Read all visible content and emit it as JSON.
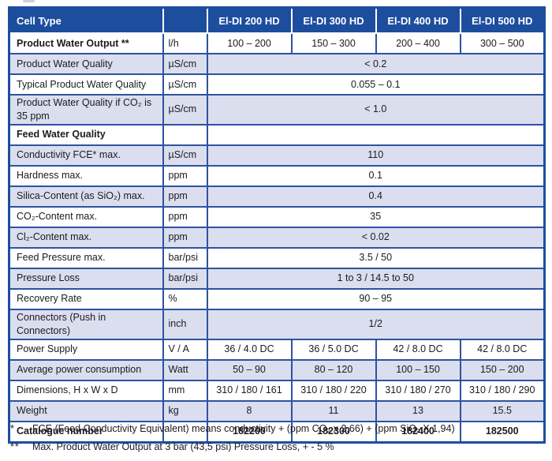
{
  "colors": {
    "header_bg": "#1d4e9e",
    "header_text": "#ffffff",
    "row_alt_bg": "#dbdeee",
    "border_blue": "#2e52a3",
    "text": "#1b1b22"
  },
  "table": {
    "header": {
      "label": "Cell Type",
      "unit": "",
      "columns": [
        "El-DI 200 HD",
        "El-DI 300 HD",
        "El-DI 400 HD",
        "El-DI 500 HD"
      ]
    },
    "rows": [
      {
        "label": "Product Water Output **",
        "unit": "l/h",
        "values": [
          "100 – 200",
          "150 – 300",
          "200 – 400",
          "300 – 500"
        ]
      },
      {
        "label": "Product Water Quality",
        "unit": "µS/cm",
        "value": "< 0.2"
      },
      {
        "label": "Typical Product Water Quality",
        "unit": "µS/cm",
        "value": "0.055 – 0.1"
      },
      {
        "label": "Product Water Quality if CO₂ is 35 ppm",
        "unit": "µS/cm",
        "value": "< 1.0"
      },
      {
        "label": "Feed Water Quality",
        "unit": "",
        "value": ""
      },
      {
        "label": "Conductivity FCE* max.",
        "unit": "µS/cm",
        "value": "110"
      },
      {
        "label": "Hardness max.",
        "unit": "ppm",
        "value": "0.1"
      },
      {
        "label": "Silica-Content (as SiO₂) max.",
        "unit": "ppm",
        "value": "0.4"
      },
      {
        "label": "CO₂-Content max.",
        "unit": "ppm",
        "value": "35"
      },
      {
        "label": "Cl₂-Content max.",
        "unit": "ppm",
        "value": "< 0.02"
      },
      {
        "label": "Feed Pressure max.",
        "unit": "bar/psi",
        "value": "3.5 / 50"
      },
      {
        "label": "Pressure Loss",
        "unit": "bar/psi",
        "value": "1 to 3 / 14.5 to 50"
      },
      {
        "label": "Recovery Rate",
        "unit": "%",
        "value": "90 – 95"
      },
      {
        "label": "Connectors (Push in Connectors)",
        "unit": "inch",
        "value": "1/2"
      },
      {
        "label": "Power Supply",
        "unit": "V / A",
        "values": [
          "36 / 4.0 DC",
          "36 / 5.0 DC",
          "42 / 8.0 DC",
          "42 / 8.0 DC"
        ]
      },
      {
        "label": "Average power consumption",
        "unit": "Watt",
        "values": [
          "50 – 90",
          "80 – 120",
          "100 – 150",
          "150 – 200"
        ]
      },
      {
        "label": "Dimensions, H x W x D",
        "unit": "mm",
        "values": [
          "310 / 180 / 161",
          "310 / 180 / 220",
          "310 / 180 / 270",
          "310 / 180 / 290"
        ]
      },
      {
        "label": "Weight",
        "unit": "kg",
        "values": [
          "8",
          "11",
          "13",
          "15.5"
        ]
      },
      {
        "label": "Catalogue number",
        "unit": "",
        "values": [
          "182200",
          "182300",
          "182400",
          "182500"
        ]
      }
    ]
  },
  "footnotes": [
    {
      "marker": "*",
      "text": "FCE (Feed Conductivity Equivalent) means conductivity + (ppm CO₂ x 2,66) + (ppm SiO₂ X 1,94)"
    },
    {
      "marker": "**",
      "text": "Max. Product Water Output at 3 bar (43,5 psi) Pressure Loss, + - 5 %"
    }
  ]
}
